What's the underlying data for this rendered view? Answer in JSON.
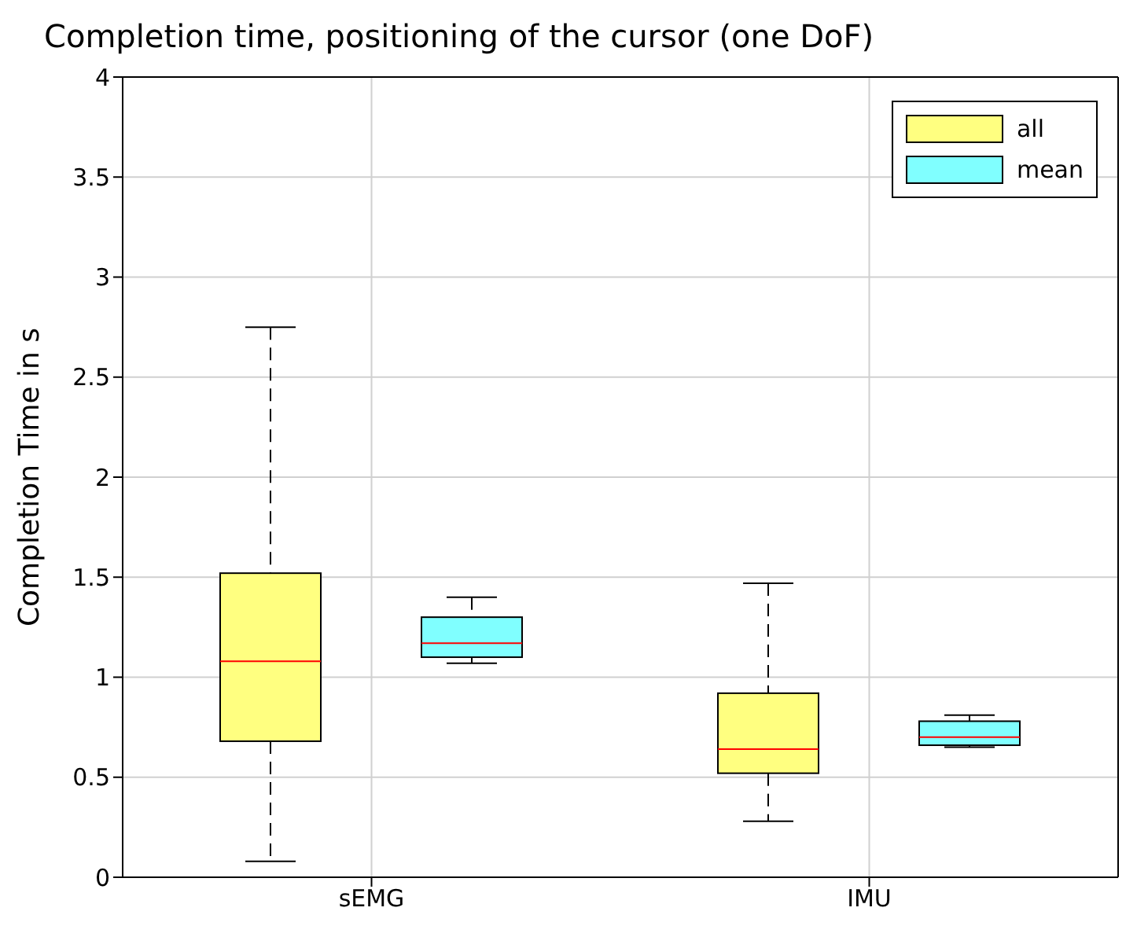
{
  "chart_data": {
    "type": "box",
    "title": "Completion time, positioning of the cursor (one DoF)",
    "ylabel": "Completion Time in s",
    "categories": [
      "sEMG",
      "IMU"
    ],
    "series": [
      {
        "name": "all",
        "color": "#ffff80",
        "boxes": [
          {
            "low": 0.08,
            "q1": 0.68,
            "median": 1.08,
            "q3": 1.52,
            "high": 2.75
          },
          {
            "low": 0.28,
            "q1": 0.52,
            "median": 0.64,
            "q3": 0.92,
            "high": 1.47
          }
        ]
      },
      {
        "name": "mean",
        "color": "#80ffff",
        "boxes": [
          {
            "low": 1.07,
            "q1": 1.1,
            "median": 1.17,
            "q3": 1.3,
            "high": 1.4
          },
          {
            "low": 0.65,
            "q1": 0.66,
            "median": 0.7,
            "q3": 0.78,
            "high": 0.81
          }
        ]
      }
    ],
    "ylim": [
      0,
      4
    ],
    "yticks": [
      0,
      0.5,
      1,
      1.5,
      2,
      2.5,
      3,
      3.5,
      4
    ],
    "grid": true,
    "legend": "top right"
  }
}
